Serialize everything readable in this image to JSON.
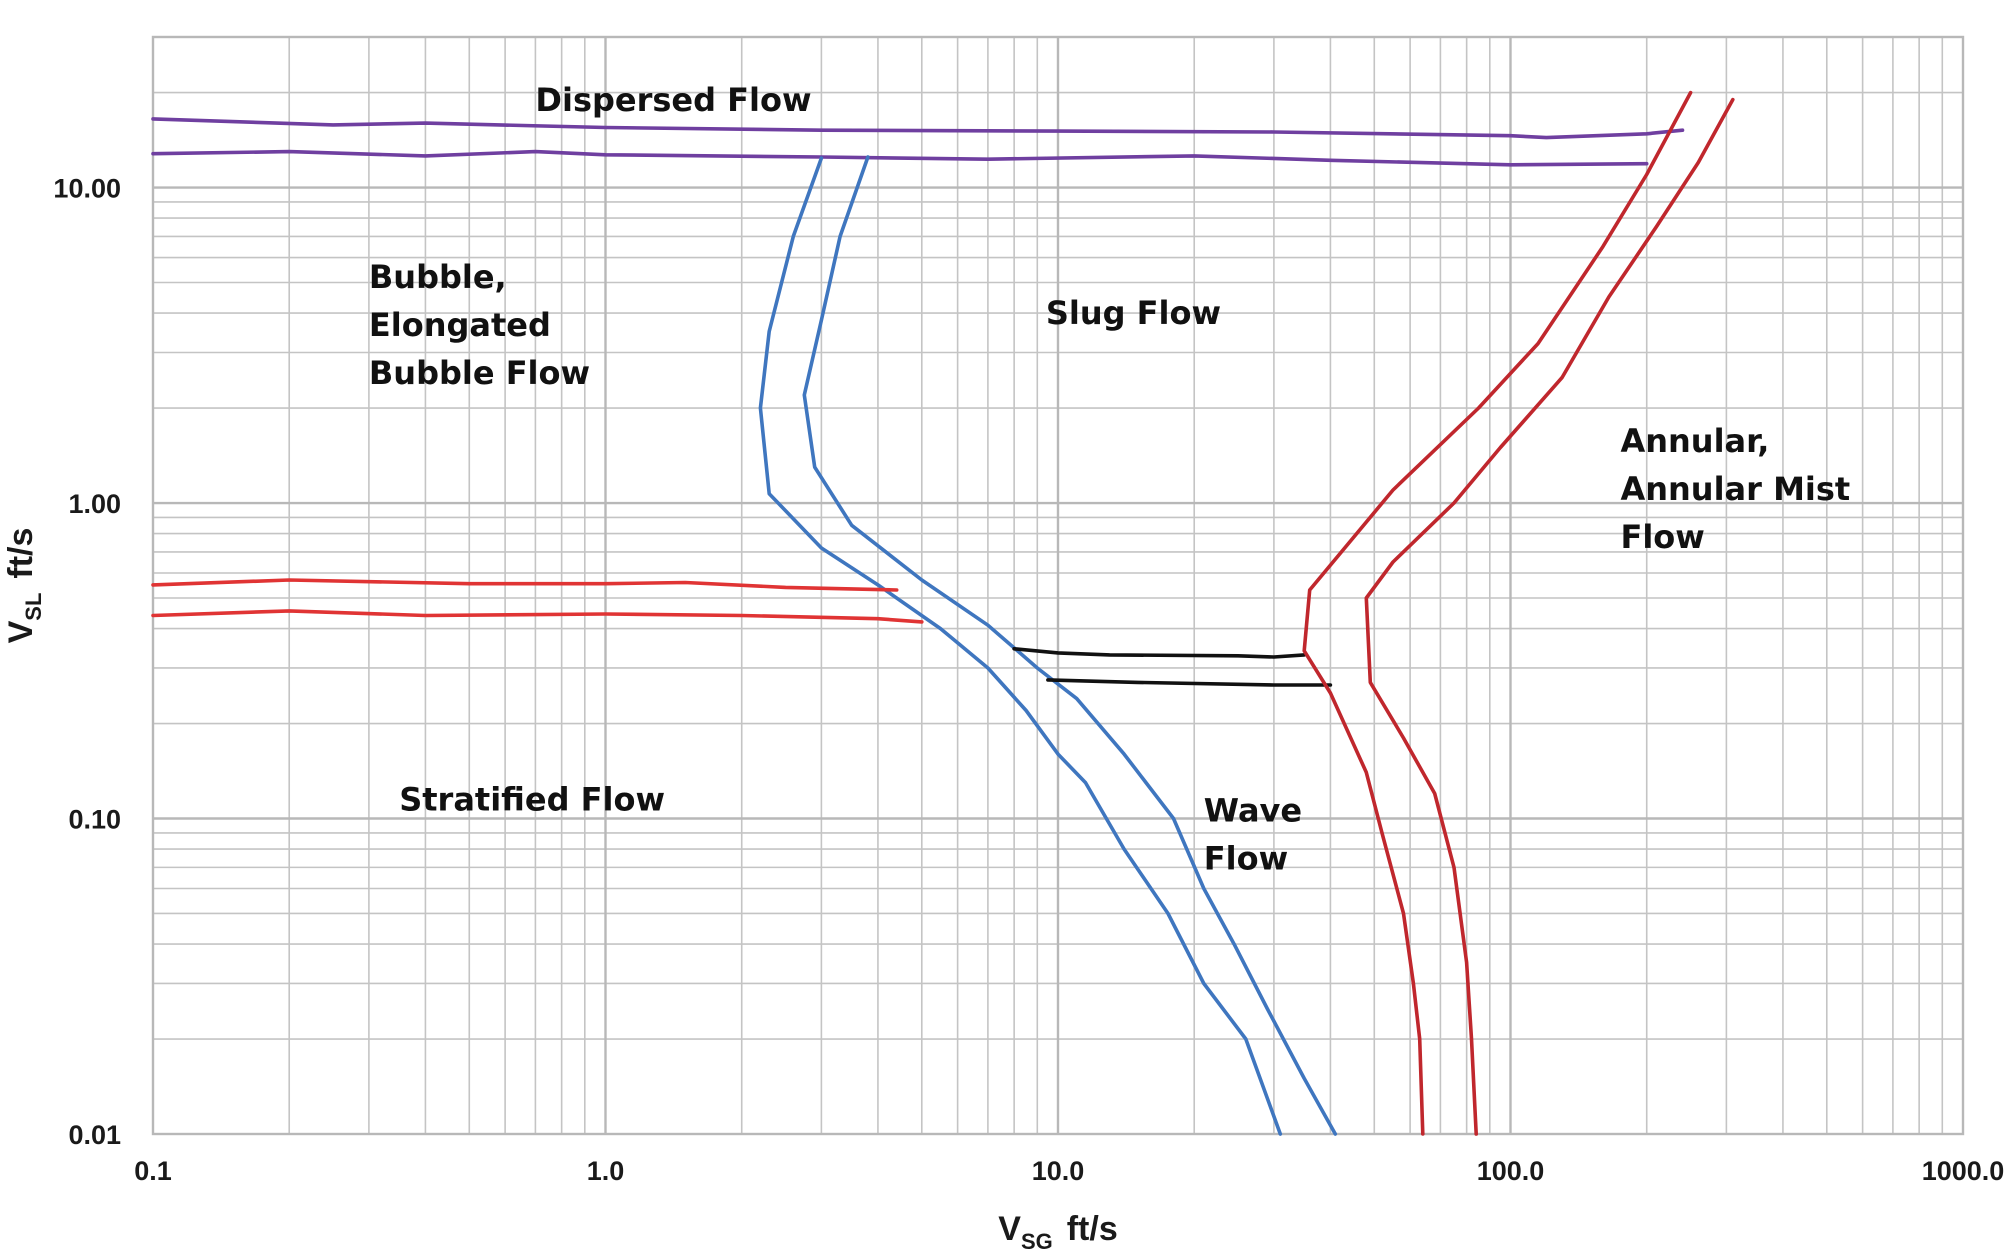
{
  "chart_data": {
    "type": "line",
    "title": "",
    "x_scale": "log",
    "y_scale": "log",
    "xlim": [
      0.1,
      1000
    ],
    "ylim": [
      0.01,
      30
    ],
    "grid": true,
    "legend": "none",
    "xlabel": {
      "main": "V",
      "sub": "SG",
      "unit": "ft/s"
    },
    "ylabel": {
      "main": "V",
      "sub": "SL",
      "unit": "ft/s"
    },
    "x_ticks": [
      {
        "value": 0.1,
        "label": "0.1"
      },
      {
        "value": 1,
        "label": "1.0"
      },
      {
        "value": 10,
        "label": "10.0"
      },
      {
        "value": 100,
        "label": "100.0"
      },
      {
        "value": 1000,
        "label": "1000.0"
      }
    ],
    "y_ticks": [
      {
        "value": 0.01,
        "label": "0.01"
      },
      {
        "value": 0.1,
        "label": "0.10"
      },
      {
        "value": 1,
        "label": "1.00"
      },
      {
        "value": 10,
        "label": "10.00"
      }
    ],
    "colors": {
      "dispersed_boundary": "#6f3fa0",
      "bubble_slug_boundary": "#3f76bf",
      "stratified_boundary": "#e03434",
      "wave_slug_boundary": "#111111",
      "annular_boundary": "#c0272d"
    },
    "series": [
      {
        "color": "#6f3fa0",
        "x": [
          0.1,
          0.25,
          0.4,
          1,
          3,
          10,
          30,
          100,
          120,
          200,
          240
        ],
        "y": [
          16.5,
          15.8,
          16,
          15.5,
          15.2,
          15.1,
          15,
          14.6,
          14.4,
          14.8,
          15.2
        ]
      },
      {
        "color": "#6f3fa0",
        "x": [
          0.1,
          0.2,
          0.4,
          0.7,
          1,
          3,
          7,
          20,
          40,
          100,
          200
        ],
        "y": [
          12.8,
          13,
          12.6,
          13,
          12.7,
          12.5,
          12.3,
          12.6,
          12.2,
          11.8,
          11.9
        ]
      },
      {
        "color": "#3f76bf",
        "x": [
          3,
          2.6,
          2.3,
          2.2,
          2.3,
          3,
          4,
          5.5,
          7,
          8.5,
          10,
          11.5,
          14,
          17.5,
          21,
          26,
          31
        ],
        "y": [
          12.4,
          7,
          3.5,
          2,
          1.07,
          0.72,
          0.55,
          0.4,
          0.3,
          0.22,
          0.16,
          0.13,
          0.08,
          0.05,
          0.03,
          0.02,
          0.01
        ]
      },
      {
        "color": "#3f76bf",
        "x": [
          3.8,
          3.3,
          3,
          2.75,
          2.9,
          3.5,
          5,
          7,
          9,
          11,
          14,
          18,
          21,
          24.5,
          29,
          35,
          41
        ],
        "y": [
          12.5,
          7,
          3.8,
          2.2,
          1.3,
          0.85,
          0.57,
          0.41,
          0.3,
          0.24,
          0.16,
          0.1,
          0.06,
          0.04,
          0.025,
          0.015,
          0.01
        ]
      },
      {
        "color": "#e03434",
        "x": [
          0.1,
          0.2,
          0.5,
          1,
          1.5,
          2.5,
          4.4
        ],
        "y": [
          0.55,
          0.57,
          0.555,
          0.555,
          0.56,
          0.54,
          0.53
        ]
      },
      {
        "color": "#e03434",
        "x": [
          0.1,
          0.2,
          0.4,
          1,
          2,
          4,
          5
        ],
        "y": [
          0.44,
          0.455,
          0.44,
          0.445,
          0.44,
          0.43,
          0.42
        ]
      },
      {
        "color": "#111111",
        "x": [
          8,
          10,
          13,
          25,
          30,
          35
        ],
        "y": [
          0.345,
          0.335,
          0.33,
          0.328,
          0.325,
          0.33
        ]
      },
      {
        "color": "#111111",
        "x": [
          9.5,
          15,
          30,
          40
        ],
        "y": [
          0.275,
          0.27,
          0.265,
          0.265
        ]
      },
      {
        "color": "#c0272d",
        "x": [
          250,
          200,
          160,
          115,
          85,
          55,
          36,
          35,
          40,
          48,
          52,
          58,
          61,
          63,
          64
        ],
        "y": [
          20,
          11,
          6.5,
          3.2,
          2,
          1.1,
          0.53,
          0.34,
          0.25,
          0.14,
          0.09,
          0.05,
          0.03,
          0.02,
          0.01
        ]
      },
      {
        "color": "#c0272d",
        "x": [
          310,
          260,
          210,
          165,
          130,
          95,
          75,
          55,
          48,
          49,
          58,
          68,
          75,
          80,
          82,
          84
        ],
        "y": [
          19,
          12,
          7.5,
          4.5,
          2.5,
          1.5,
          1,
          0.65,
          0.5,
          0.27,
          0.18,
          0.12,
          0.07,
          0.035,
          0.02,
          0.01
        ]
      }
    ],
    "annotations": [
      {
        "lines": [
          "Dispersed Flow"
        ],
        "x": 0.7,
        "y": 17.5
      },
      {
        "lines": [
          "Bubble,",
          "",
          "Elongated",
          "Bubble Flow"
        ],
        "x": 0.3,
        "y": 4.8
      },
      {
        "lines": [
          "Slug Flow"
        ],
        "x": 9.4,
        "y": 3.7
      },
      {
        "lines": [
          "Stratified Flow"
        ],
        "x": 0.35,
        "y": 0.106
      },
      {
        "lines": [
          "Wave",
          "Flow"
        ],
        "x": 21,
        "y": 0.098
      },
      {
        "lines": [
          "Annular,",
          "",
          "Annular Mist",
          "Flow"
        ],
        "x": 175,
        "y": 1.45
      }
    ]
  }
}
